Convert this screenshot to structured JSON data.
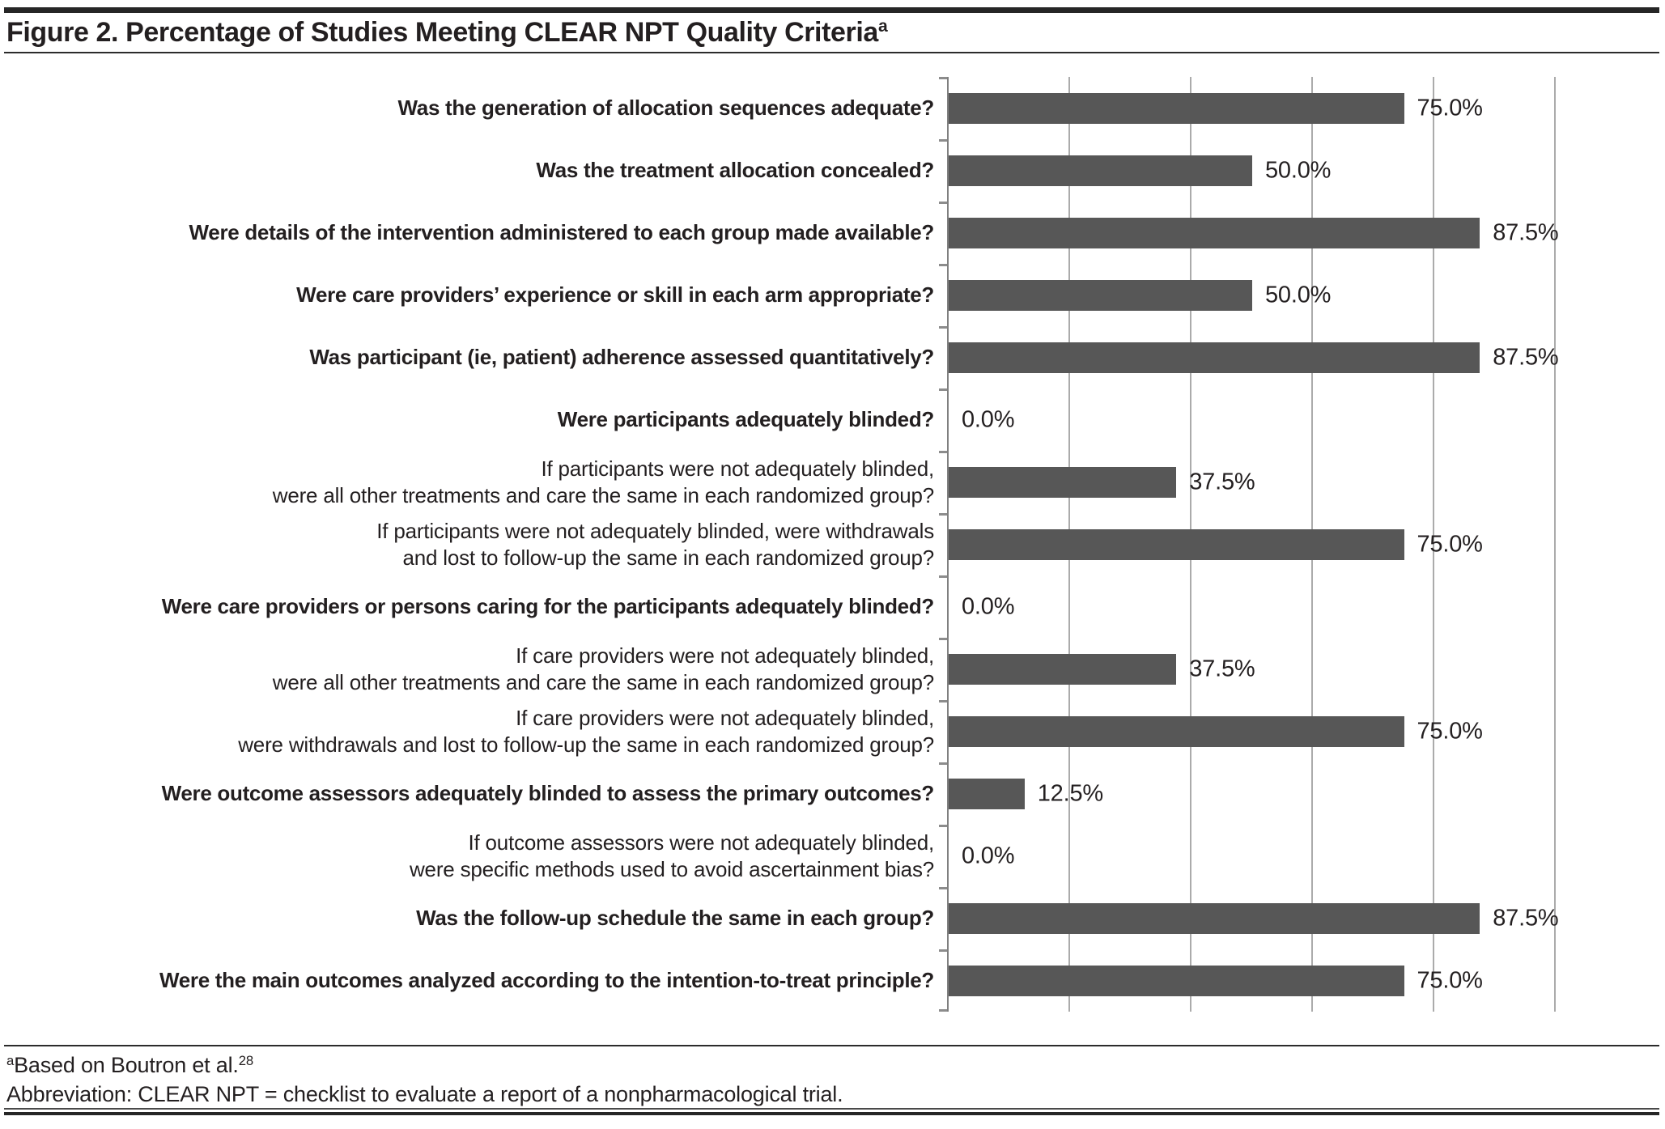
{
  "figure": {
    "title": "Figure 2. Percentage of Studies Meeting CLEAR NPT Quality Criteria",
    "title_superscript": "a",
    "footnotes": {
      "note1_superscript": "a",
      "note1_text": "Based on Boutron et al.",
      "note1_reference_superscript": "28",
      "note2_text": "Abbreviation: CLEAR NPT = checklist to evaluate a report of a nonpharmacological trial."
    }
  },
  "chart_data": {
    "type": "bar",
    "orientation": "horizontal",
    "title": "Figure 2. Percentage of Studies Meeting CLEAR NPT Quality Criteria",
    "xlabel": "",
    "ylabel": "",
    "xlim": [
      0,
      100
    ],
    "gridline_step_percent": 20,
    "grid": "vertical-gridlines-only",
    "legend_position": "none",
    "bar_color": "#575757",
    "gridline_color": "#ababab",
    "axis_color": "#7f7f7f",
    "categories": [
      "Was the generation of allocation sequences adequate?",
      "Was the treatment allocation concealed?",
      "Were details of the intervention administered to each group made available?",
      "Were care providers’ experience or skill in each arm appropriate?",
      "Was participant (ie, patient) adherence assessed quantitatively?",
      "Were participants adequately blinded?",
      "If participants were not adequately blinded, were all other treatments and care the same in each randomized group?",
      "If participants were not adequately blinded, were withdrawals and lost to follow-up the same in each randomized group?",
      "Were care providers or persons caring for the participants adequately blinded?",
      "If care providers were not adequately blinded, were all other treatments and care the same in each randomized group?",
      "If care providers were not adequately blinded, were withdrawals and lost to follow-up the same in each randomized group?",
      "Were outcome assessors adequately blinded to assess the primary outcomes?",
      "If outcome assessors were not adequately blinded, were specific methods used to avoid ascertainment bias?",
      "Was the follow-up schedule the same in each group?",
      "Were the main outcomes analyzed according to the intention-to-treat principle?"
    ],
    "values": [
      75.0,
      50.0,
      87.5,
      50.0,
      87.5,
      0.0,
      37.5,
      75.0,
      0.0,
      37.5,
      75.0,
      12.5,
      0.0,
      87.5,
      75.0
    ],
    "rows": [
      {
        "label_lines": [
          "Was the generation of allocation sequences adequate?"
        ],
        "bold": true,
        "value": 75.0,
        "value_label": "75.0%"
      },
      {
        "label_lines": [
          "Was the treatment allocation concealed?"
        ],
        "bold": true,
        "value": 50.0,
        "value_label": "50.0%"
      },
      {
        "label_lines": [
          "Were details of the intervention administered to each group made available?"
        ],
        "bold": true,
        "value": 87.5,
        "value_label": "87.5%"
      },
      {
        "label_lines": [
          "Were care providers’ experience or skill in each arm appropriate?"
        ],
        "bold": true,
        "value": 50.0,
        "value_label": "50.0%"
      },
      {
        "label_lines": [
          "Was participant (ie, patient) adherence assessed quantitatively?"
        ],
        "bold": true,
        "value": 87.5,
        "value_label": "87.5%"
      },
      {
        "label_lines": [
          "Were participants adequately blinded?"
        ],
        "bold": true,
        "value": 0.0,
        "value_label": "0.0%"
      },
      {
        "label_lines": [
          "If participants were not adequately blinded,",
          "were all other treatments and care the same in each randomized group?"
        ],
        "bold": false,
        "value": 37.5,
        "value_label": "37.5%"
      },
      {
        "label_lines": [
          "If participants were not adequately blinded, were withdrawals",
          "and lost to follow-up the same in each randomized group?"
        ],
        "bold": false,
        "value": 75.0,
        "value_label": "75.0%"
      },
      {
        "label_lines": [
          "Were care providers or persons caring for the participants adequately blinded?"
        ],
        "bold": true,
        "value": 0.0,
        "value_label": "0.0%"
      },
      {
        "label_lines": [
          "If care providers were not adequately blinded,",
          "were all other treatments and care the same in each randomized group?"
        ],
        "bold": false,
        "value": 37.5,
        "value_label": "37.5%"
      },
      {
        "label_lines": [
          "If care providers were not adequately blinded,",
          "were withdrawals and lost to follow-up the same in each randomized group?"
        ],
        "bold": false,
        "value": 75.0,
        "value_label": "75.0%"
      },
      {
        "label_lines": [
          "Were outcome assessors adequately blinded to assess the primary outcomes?"
        ],
        "bold": true,
        "value": 12.5,
        "value_label": "12.5%"
      },
      {
        "label_lines": [
          "If outcome assessors were not adequately blinded,",
          "were specific methods used to avoid ascertainment bias?"
        ],
        "bold": false,
        "value": 0.0,
        "value_label": "0.0%"
      },
      {
        "label_lines": [
          "Was the follow-up schedule the same in each group?"
        ],
        "bold": true,
        "value": 87.5,
        "value_label": "87.5%"
      },
      {
        "label_lines": [
          "Were the main outcomes analyzed according to the intention-to-treat principle?"
        ],
        "bold": true,
        "value": 75.0,
        "value_label": "75.0%"
      }
    ]
  }
}
